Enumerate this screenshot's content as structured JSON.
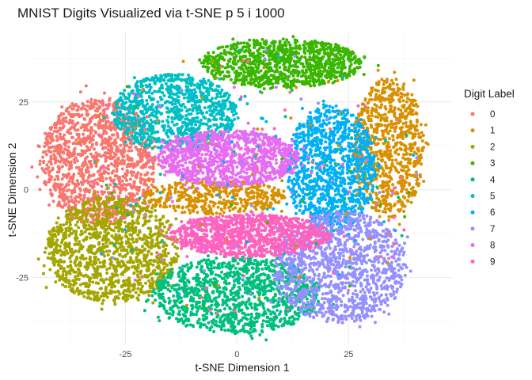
{
  "chart_data": {
    "type": "scatter",
    "title": "MNIST Digits Visualized via t-SNE p 5 i 1000",
    "xlabel": "t-SNE Dimension 1",
    "ylabel": "t-SNE Dimension 2",
    "xlim": [
      -46,
      48
    ],
    "ylim": [
      -44,
      45
    ],
    "x_ticks": [
      -25,
      0,
      25
    ],
    "y_ticks": [
      -25,
      0,
      25
    ],
    "x_tick_labels": [
      "-25",
      "0",
      "25"
    ],
    "y_tick_labels": [
      "-25",
      "0",
      "25"
    ],
    "grid": true,
    "legend": {
      "title": "Digit Label",
      "position": "right",
      "entries": [
        "0",
        "1",
        "2",
        "3",
        "4",
        "5",
        "6",
        "7",
        "8",
        "9"
      ]
    },
    "colors": [
      "#F8766D",
      "#D89000",
      "#A3A500",
      "#39B600",
      "#00BF7D",
      "#00BFC4",
      "#00B0F6",
      "#9590FF",
      "#E76BF3",
      "#FF62BC"
    ],
    "series": [
      {
        "label": "0",
        "color": "#F8766D",
        "clusters": [
          {
            "cx": -31,
            "cy": 8,
            "rx": 13,
            "ry": 18,
            "n": 1300
          }
        ]
      },
      {
        "label": "1",
        "color": "#D89000",
        "clusters": [
          {
            "cx": 34,
            "cy": 12,
            "rx": 8,
            "ry": 20,
            "n": 800
          },
          {
            "cx": -5,
            "cy": -2,
            "rx": 16,
            "ry": 5,
            "n": 450
          }
        ]
      },
      {
        "label": "2",
        "color": "#A3A500",
        "clusters": [
          {
            "cx": -28,
            "cy": -17,
            "rx": 15,
            "ry": 15,
            "n": 1250
          }
        ]
      },
      {
        "label": "3",
        "color": "#39B600",
        "clusters": [
          {
            "cx": 10,
            "cy": 36,
            "rx": 18,
            "ry": 7,
            "n": 1050
          }
        ]
      },
      {
        "label": "4",
        "color": "#00BF7D",
        "clusters": [
          {
            "cx": 0,
            "cy": -30,
            "rx": 19,
            "ry": 11,
            "n": 1200
          }
        ]
      },
      {
        "label": "5",
        "color": "#00BFC4",
        "clusters": [
          {
            "cx": -14,
            "cy": 22,
            "rx": 14,
            "ry": 11,
            "n": 1000
          }
        ]
      },
      {
        "label": "6",
        "color": "#00B0F6",
        "clusters": [
          {
            "cx": 21,
            "cy": 6,
            "rx": 10,
            "ry": 18,
            "n": 1150
          }
        ]
      },
      {
        "label": "7",
        "color": "#9590FF",
        "clusters": [
          {
            "cx": 23,
            "cy": -22,
            "rx": 15,
            "ry": 16,
            "n": 1250
          }
        ]
      },
      {
        "label": "8",
        "color": "#E76BF3",
        "clusters": [
          {
            "cx": -2,
            "cy": 9,
            "rx": 16,
            "ry": 8,
            "n": 1100
          }
        ]
      },
      {
        "label": "9",
        "color": "#FF62BC",
        "clusters": [
          {
            "cx": 3,
            "cy": -13,
            "rx": 18,
            "ry": 6,
            "n": 1100
          }
        ]
      }
    ]
  }
}
